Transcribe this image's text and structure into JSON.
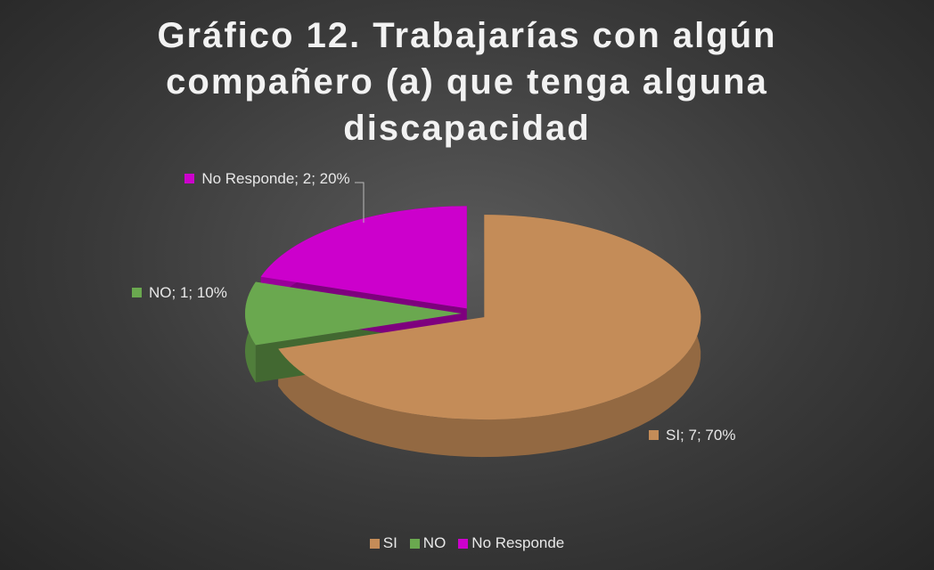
{
  "chart_data": {
    "type": "pie3d",
    "title": "Gráfico 12. Trabajarías con algún compañero (a) que tenga alguna discapacidad",
    "categories": [
      "SI",
      "NO",
      "No Responde"
    ],
    "values": [
      7,
      1,
      2
    ],
    "value_labels": [
      "SI; 7; 70%",
      "NO; 1; 10%",
      "No Responde; 2; 20%"
    ],
    "colors": [
      "#c48c58",
      "#6aa84f",
      "#cc00cc"
    ],
    "legend": "bottom"
  }
}
